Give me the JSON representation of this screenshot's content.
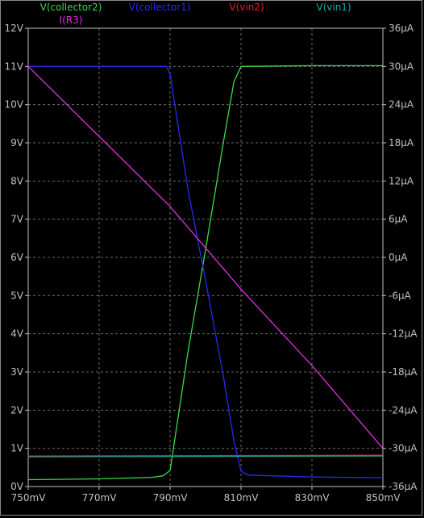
{
  "chart_data": {
    "type": "line",
    "x": {
      "ticks": [
        "750mV",
        "770mV",
        "790mV",
        "810mV",
        "830mV",
        "850mV"
      ],
      "range_mV": [
        750,
        850
      ]
    },
    "y_left": {
      "ticks": [
        "0V",
        "1V",
        "2V",
        "3V",
        "4V",
        "5V",
        "6V",
        "7V",
        "8V",
        "9V",
        "10V",
        "11V",
        "12V"
      ],
      "range_V": [
        0,
        12
      ]
    },
    "y_right": {
      "ticks": [
        "-36µA",
        "-30µA",
        "-24µA",
        "-18µA",
        "-12µA",
        "-6µA",
        "0µA",
        "6µA",
        "12µA",
        "18µA",
        "24µA",
        "30µA",
        "36µA"
      ],
      "range_uA": [
        -36,
        36
      ]
    },
    "grid": true,
    "series": [
      {
        "name": "V(collector2)",
        "color": "#3dd94a",
        "axis": "left",
        "points": [
          [
            750,
            0.18
          ],
          [
            770,
            0.2
          ],
          [
            785,
            0.24
          ],
          [
            788,
            0.28
          ],
          [
            790,
            0.42
          ],
          [
            795,
            3.5
          ],
          [
            800,
            6.2
          ],
          [
            805,
            9.0
          ],
          [
            808,
            10.6
          ],
          [
            810,
            11.0
          ],
          [
            830,
            11.02
          ],
          [
            850,
            11.02
          ]
        ]
      },
      {
        "name": "V(collector1)",
        "color": "#2a2af0",
        "axis": "left",
        "points": [
          [
            750,
            11.0
          ],
          [
            770,
            11.0
          ],
          [
            789,
            11.0
          ],
          [
            790,
            10.8
          ],
          [
            795,
            7.8
          ],
          [
            800,
            5.4
          ],
          [
            805,
            2.9
          ],
          [
            808,
            1.2
          ],
          [
            810,
            0.4
          ],
          [
            812,
            0.3
          ],
          [
            830,
            0.25
          ],
          [
            850,
            0.23
          ]
        ]
      },
      {
        "name": "V(vin2)",
        "color": "#e02020",
        "axis": "left",
        "points": [
          [
            750,
            0.8
          ],
          [
            850,
            0.82
          ]
        ]
      },
      {
        "name": "V(vin1)",
        "color": "#1aa7a7",
        "axis": "left",
        "points": [
          [
            750,
            0.78
          ],
          [
            850,
            0.8
          ]
        ]
      },
      {
        "name": "I(R3)",
        "color": "#e030e0",
        "axis": "right",
        "points": [
          [
            750,
            30.0
          ],
          [
            770,
            19.0
          ],
          [
            790,
            8.0
          ],
          [
            810,
            -5.0
          ],
          [
            830,
            -17.0
          ],
          [
            850,
            -30.0
          ]
        ]
      }
    ]
  }
}
